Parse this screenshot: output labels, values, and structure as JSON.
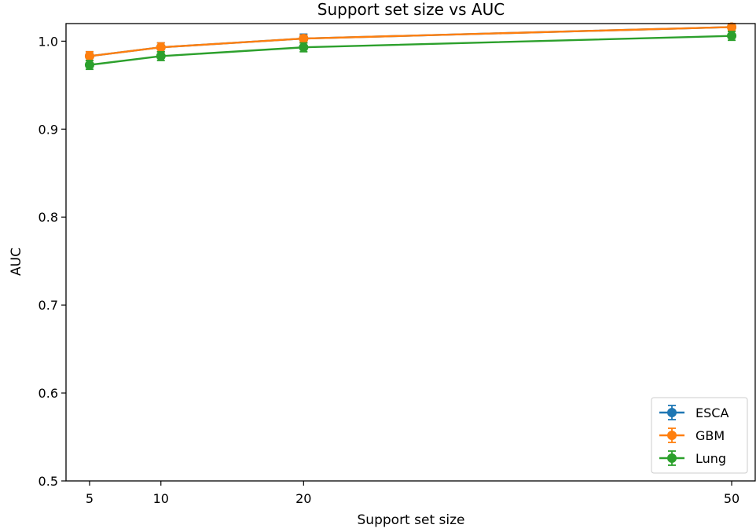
{
  "chart_data": {
    "type": "line",
    "title": "Support set size vs AUC",
    "xlabel": "Support set size",
    "ylabel": "AUC",
    "x": [
      5,
      10,
      20,
      50
    ],
    "xlim": [
      3.35,
      51.65
    ],
    "ylim": [
      0.5,
      1.02
    ],
    "xticks": [
      5,
      10,
      20,
      50
    ],
    "xtick_labels": [
      "5",
      "10",
      "20",
      "50"
    ],
    "yticks": [
      0.5,
      0.6,
      0.7,
      0.8,
      0.9,
      1.0
    ],
    "ytick_labels": [
      "0.5",
      "0.6",
      "0.7",
      "0.8",
      "0.9",
      "1.0"
    ],
    "grid": false,
    "legend_position": "lower-right",
    "series": [
      {
        "name": "ESCA",
        "color": "#1f77b4",
        "values": [
          0.983,
          0.993,
          1.003,
          1.016
        ],
        "err": [
          0.005,
          0.005,
          0.005,
          0.004
        ]
      },
      {
        "name": "GBM",
        "color": "#ff7f0e",
        "values": [
          0.983,
          0.993,
          1.003,
          1.016
        ],
        "err": [
          0.005,
          0.005,
          0.004,
          0.004
        ]
      },
      {
        "name": "Lung",
        "color": "#2ca02c",
        "values": [
          0.973,
          0.983,
          0.993,
          1.006
        ],
        "err": [
          0.005,
          0.005,
          0.005,
          0.005
        ]
      }
    ]
  }
}
